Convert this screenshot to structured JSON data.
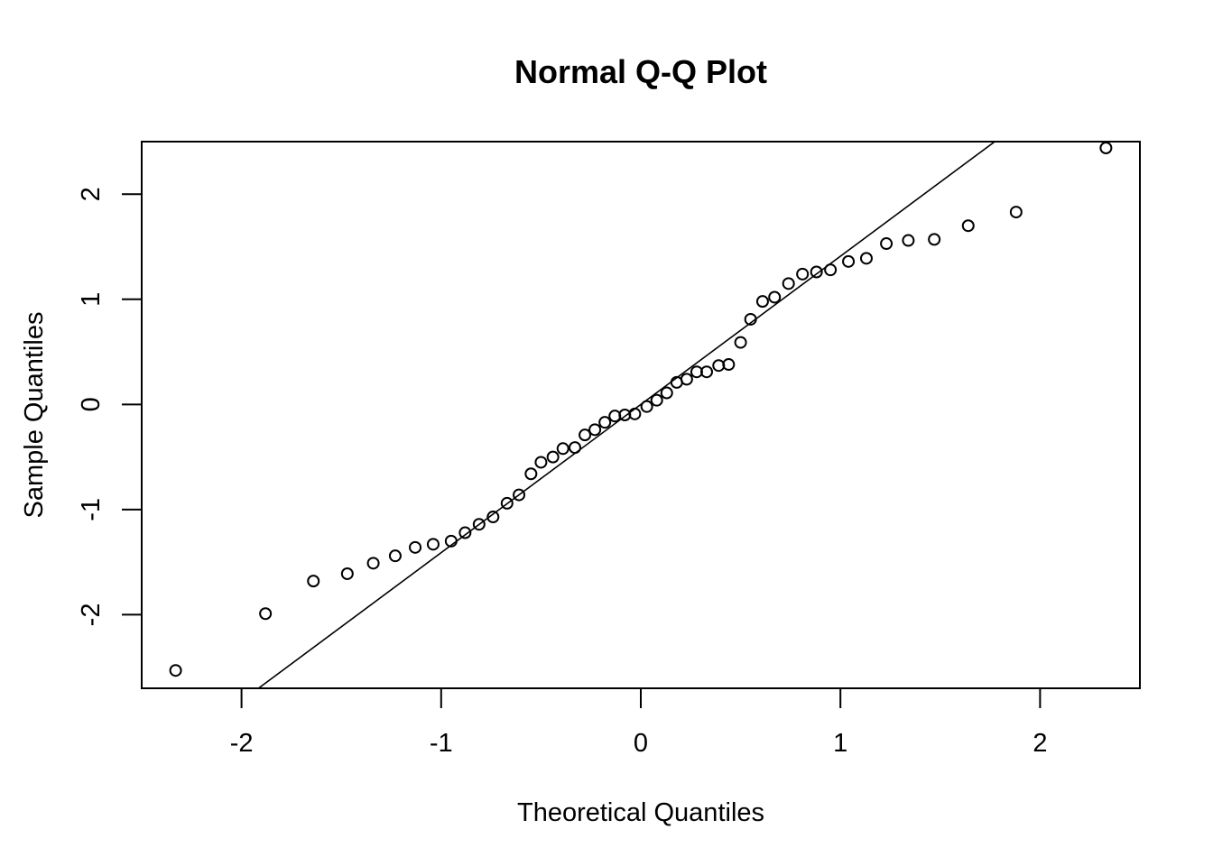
{
  "chart_data": {
    "type": "scatter",
    "title": "Normal Q-Q Plot",
    "xlabel": "Theoretical Quantiles",
    "ylabel": "Sample Quantiles",
    "xlim": [
      -2.5,
      2.5
    ],
    "ylim": [
      -2.7,
      2.5
    ],
    "xticks": [
      -2,
      -1,
      0,
      1,
      2
    ],
    "yticks": [
      -2,
      -1,
      0,
      1,
      2
    ],
    "xtick_labels": [
      "-2",
      "-1",
      "0",
      "1",
      "2"
    ],
    "ytick_labels": [
      "-2",
      "-1",
      "0",
      "1",
      "2"
    ],
    "grid": false,
    "legend": "none",
    "reference_line": {
      "intercept": 0.0,
      "slope": 1.41
    },
    "points": [
      {
        "x": -2.33,
        "y": -2.53
      },
      {
        "x": -1.88,
        "y": -1.99
      },
      {
        "x": -1.64,
        "y": -1.68
      },
      {
        "x": -1.47,
        "y": -1.61
      },
      {
        "x": -1.34,
        "y": -1.51
      },
      {
        "x": -1.23,
        "y": -1.44
      },
      {
        "x": -1.13,
        "y": -1.36
      },
      {
        "x": -1.04,
        "y": -1.33
      },
      {
        "x": -0.95,
        "y": -1.3
      },
      {
        "x": -0.88,
        "y": -1.22
      },
      {
        "x": -0.81,
        "y": -1.14
      },
      {
        "x": -0.74,
        "y": -1.07
      },
      {
        "x": -0.67,
        "y": -0.94
      },
      {
        "x": -0.61,
        "y": -0.86
      },
      {
        "x": -0.55,
        "y": -0.66
      },
      {
        "x": -0.5,
        "y": -0.55
      },
      {
        "x": -0.44,
        "y": -0.5
      },
      {
        "x": -0.39,
        "y": -0.42
      },
      {
        "x": -0.33,
        "y": -0.41
      },
      {
        "x": -0.28,
        "y": -0.29
      },
      {
        "x": -0.23,
        "y": -0.24
      },
      {
        "x": -0.18,
        "y": -0.17
      },
      {
        "x": -0.13,
        "y": -0.11
      },
      {
        "x": -0.08,
        "y": -0.1
      },
      {
        "x": -0.03,
        "y": -0.09
      },
      {
        "x": 0.03,
        "y": -0.02
      },
      {
        "x": 0.08,
        "y": 0.04
      },
      {
        "x": 0.13,
        "y": 0.11
      },
      {
        "x": 0.18,
        "y": 0.21
      },
      {
        "x": 0.23,
        "y": 0.24
      },
      {
        "x": 0.28,
        "y": 0.31
      },
      {
        "x": 0.33,
        "y": 0.31
      },
      {
        "x": 0.39,
        "y": 0.37
      },
      {
        "x": 0.44,
        "y": 0.38
      },
      {
        "x": 0.5,
        "y": 0.59
      },
      {
        "x": 0.55,
        "y": 0.81
      },
      {
        "x": 0.61,
        "y": 0.98
      },
      {
        "x": 0.67,
        "y": 1.02
      },
      {
        "x": 0.74,
        "y": 1.15
      },
      {
        "x": 0.81,
        "y": 1.24
      },
      {
        "x": 0.88,
        "y": 1.26
      },
      {
        "x": 0.95,
        "y": 1.28
      },
      {
        "x": 1.04,
        "y": 1.36
      },
      {
        "x": 1.13,
        "y": 1.39
      },
      {
        "x": 1.23,
        "y": 1.53
      },
      {
        "x": 1.34,
        "y": 1.56
      },
      {
        "x": 1.47,
        "y": 1.57
      },
      {
        "x": 1.64,
        "y": 1.7
      },
      {
        "x": 1.88,
        "y": 1.83
      },
      {
        "x": 2.33,
        "y": 2.44
      }
    ]
  }
}
